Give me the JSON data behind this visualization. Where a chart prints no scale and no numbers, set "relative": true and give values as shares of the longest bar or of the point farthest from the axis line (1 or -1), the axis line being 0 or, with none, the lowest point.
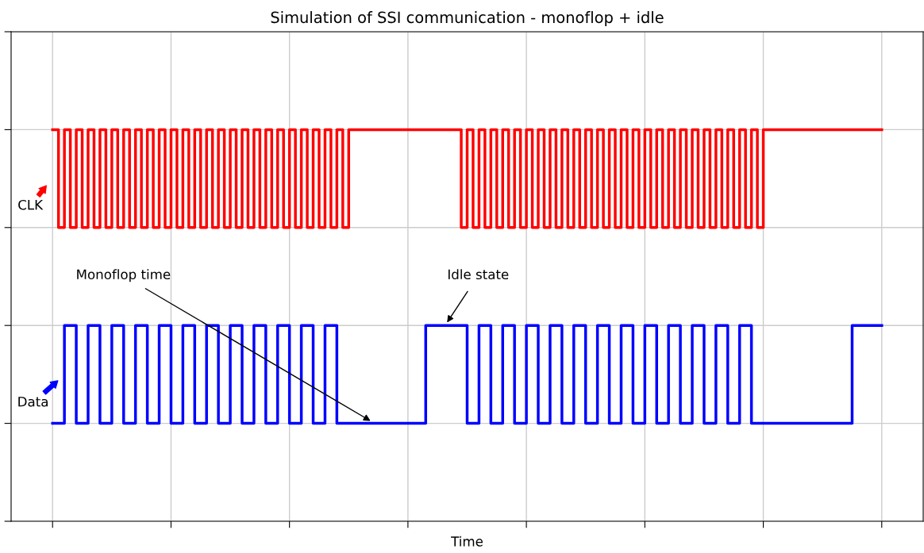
{
  "chart_data": {
    "type": "step",
    "title": "Simulation of SSI communication - monoflop + idle",
    "xlabel": "Time",
    "relative": true,
    "grid": true,
    "legend": "left",
    "categories": [
      null,
      null,
      null,
      null,
      null,
      null,
      null,
      null,
      null,
      null,
      null,
      null,
      null,
      null,
      null,
      null,
      null,
      null,
      null,
      null,
      null,
      null,
      null,
      null,
      null,
      null,
      null,
      null,
      null,
      null,
      null,
      null,
      null,
      null,
      null,
      null,
      null,
      null,
      null,
      null,
      null,
      null,
      null,
      null,
      null,
      null,
      null,
      null,
      null,
      null,
      null,
      null,
      null,
      null,
      null,
      null,
      null,
      null,
      null,
      null,
      null,
      null,
      null,
      null,
      null,
      null,
      null,
      null,
      null,
      null,
      null,
      null,
      null,
      null,
      null,
      null,
      null,
      null,
      null,
      null,
      null,
      null,
      null,
      null,
      null,
      null,
      null,
      null,
      null,
      null,
      null,
      null,
      null,
      null,
      null,
      null,
      null,
      null,
      null,
      null,
      null,
      null,
      null,
      null,
      null,
      null,
      null,
      null,
      null,
      null,
      null,
      null,
      null,
      null,
      null,
      null,
      null,
      null,
      null,
      null,
      null,
      null,
      null,
      null,
      null,
      null,
      null,
      null,
      null,
      null,
      null,
      null,
      null,
      null,
      null,
      null,
      null,
      null,
      null,
      null,
      null
    ],
    "series": [
      {
        "name": "CLK",
        "color": "#ff0000",
        "values": [
          1,
          0.75,
          1,
          0.75,
          1,
          0.75,
          1,
          0.75,
          1,
          0.75,
          1,
          0.75,
          1,
          0.75,
          1,
          0.75,
          1,
          0.75,
          1,
          0.75,
          1,
          0.75,
          1,
          0.75,
          1,
          0.75,
          1,
          0.75,
          1,
          0.75,
          1,
          0.75,
          1,
          0.75,
          1,
          0.75,
          1,
          0.75,
          1,
          0.75,
          1,
          0.75,
          1,
          0.75,
          1,
          0.75,
          1,
          0.75,
          1,
          0.75,
          1,
          1,
          1,
          1,
          1,
          1,
          1,
          1,
          1,
          1,
          1,
          1,
          1,
          1,
          1,
          1,
          1,
          1,
          1,
          0.75,
          1,
          0.75,
          1,
          0.75,
          1,
          0.75,
          1,
          0.75,
          1,
          0.75,
          1,
          0.75,
          1,
          0.75,
          1,
          0.75,
          1,
          0.75,
          1,
          0.75,
          1,
          0.75,
          1,
          0.75,
          1,
          0.75,
          1,
          0.75,
          1,
          0.75,
          1,
          0.75,
          1,
          0.75,
          1,
          0.75,
          1,
          0.75,
          1,
          0.75,
          1,
          0.75,
          1,
          0.75,
          1,
          0.75,
          1,
          0.75,
          1,
          0.75,
          1,
          1,
          1,
          1,
          1,
          1,
          1,
          1,
          1,
          1,
          1,
          1,
          1,
          1,
          1,
          1,
          1,
          1,
          1,
          1,
          1
        ]
      },
      {
        "name": "Data",
        "color": "#0000ff",
        "values": [
          0.25,
          0.25,
          0.5,
          0.5,
          0.25,
          0.25,
          0.5,
          0.5,
          0.25,
          0.25,
          0.5,
          0.5,
          0.25,
          0.25,
          0.5,
          0.5,
          0.25,
          0.25,
          0.5,
          0.5,
          0.25,
          0.25,
          0.5,
          0.5,
          0.25,
          0.25,
          0.5,
          0.5,
          0.25,
          0.25,
          0.5,
          0.5,
          0.25,
          0.25,
          0.5,
          0.5,
          0.25,
          0.25,
          0.5,
          0.5,
          0.25,
          0.25,
          0.5,
          0.5,
          0.25,
          0.25,
          0.5,
          0.5,
          0.25,
          0.25,
          0.25,
          0.25,
          0.25,
          0.25,
          0.25,
          0.25,
          0.25,
          0.25,
          0.25,
          0.25,
          0.25,
          0.25,
          0.25,
          0.5,
          0.5,
          0.5,
          0.5,
          0.5,
          0.5,
          0.5,
          0.25,
          0.25,
          0.5,
          0.5,
          0.25,
          0.25,
          0.5,
          0.5,
          0.25,
          0.25,
          0.5,
          0.5,
          0.25,
          0.25,
          0.5,
          0.5,
          0.25,
          0.25,
          0.5,
          0.5,
          0.25,
          0.25,
          0.5,
          0.5,
          0.25,
          0.25,
          0.5,
          0.5,
          0.25,
          0.25,
          0.5,
          0.5,
          0.25,
          0.25,
          0.5,
          0.5,
          0.25,
          0.25,
          0.5,
          0.5,
          0.25,
          0.25,
          0.5,
          0.5,
          0.25,
          0.25,
          0.5,
          0.5,
          0.25,
          0.25,
          0.25,
          0.25,
          0.25,
          0.25,
          0.25,
          0.25,
          0.25,
          0.25,
          0.25,
          0.25,
          0.25,
          0.25,
          0.25,
          0.25,
          0.25,
          0.5,
          0.5,
          0.5,
          0.5,
          0.5,
          0.5
        ]
      }
    ],
    "annotations": [
      "Monoflop time",
      "Idle state"
    ]
  }
}
